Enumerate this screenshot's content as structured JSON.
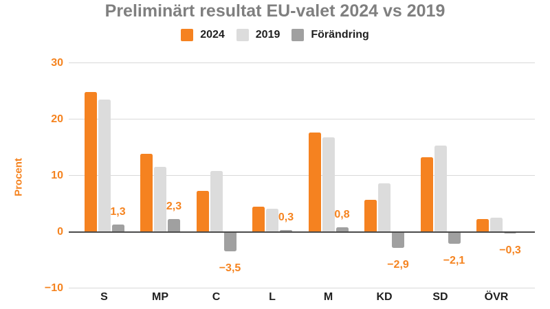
{
  "title": "Preliminärt resultat EU-valet 2024 vs 2019",
  "colors": {
    "accent_orange": "#f5831f",
    "bar_2024": "#f58220",
    "bar_2019": "#dcdcdc",
    "bar_change": "#a0a0a0",
    "title_gray": "#7f7f7f",
    "gridline": "#d9d9d9",
    "axis_line": "#4a4a4a",
    "label_dark": "#1f1f1f"
  },
  "chart_data": {
    "type": "bar",
    "title": "Preliminärt resultat EU-valet 2024 vs 2019",
    "xlabel": "",
    "ylabel": "Procent",
    "ylim": [
      -10,
      30
    ],
    "grid": true,
    "legend_position": "top",
    "categories": [
      "S",
      "MP",
      "C",
      "L",
      "M",
      "KD",
      "SD",
      "ÖVR"
    ],
    "series": [
      {
        "name": "2024",
        "color": "#f58220",
        "values": [
          24.8,
          13.8,
          7.3,
          4.4,
          17.6,
          5.7,
          13.2,
          2.2
        ]
      },
      {
        "name": "2019",
        "color": "#dcdcdc",
        "values": [
          23.5,
          11.5,
          10.8,
          4.1,
          16.8,
          8.6,
          15.3,
          2.5
        ]
      },
      {
        "name": "Förändring",
        "color": "#a0a0a0",
        "values": [
          1.3,
          2.3,
          -3.5,
          0.3,
          0.8,
          -2.9,
          -2.1,
          -0.3
        ],
        "labels": [
          "1,3",
          "2,3",
          "−3,5",
          "0,3",
          "0,8",
          "−2,9",
          "−2,1",
          "−0,3"
        ]
      }
    ],
    "yticks": [
      {
        "value": 30,
        "label": "30"
      },
      {
        "value": 20,
        "label": "20"
      },
      {
        "value": 10,
        "label": "10"
      },
      {
        "value": 0,
        "label": "0"
      },
      {
        "value": -10,
        "label": "−10"
      }
    ]
  }
}
